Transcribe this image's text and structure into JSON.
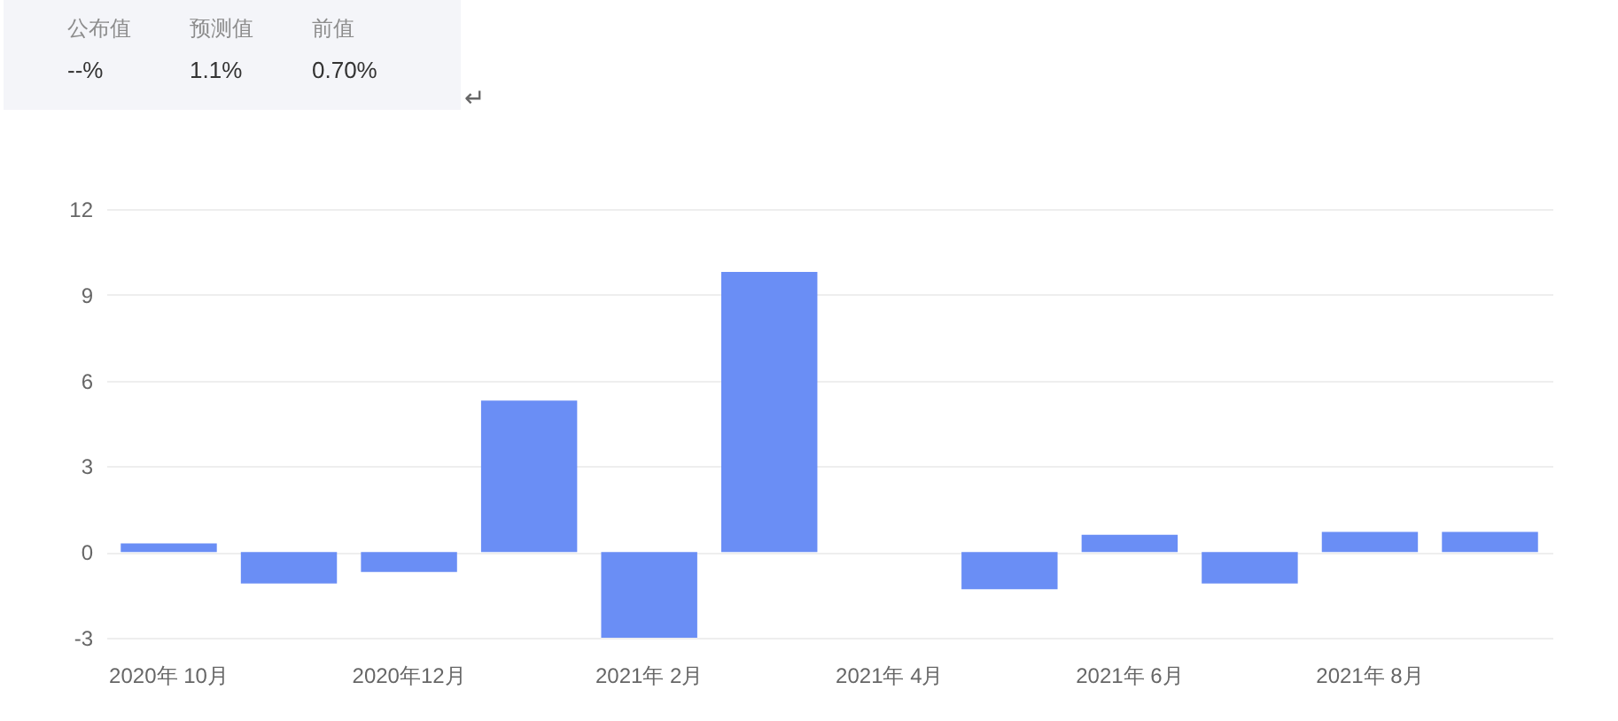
{
  "chart_data": [
    {
      "type": "other",
      "annotations": [
        "公布值",
        "预测值",
        "前值",
        "--%",
        "1.1%",
        "0.70%",
        "↵"
      ]
    },
    {
      "type": "bar",
      "categories": [
        "2020年 10月",
        null,
        "2020年12月",
        null,
        "2021年 2月",
        null,
        "2021年 4月",
        null,
        "2021年 6月",
        null,
        "2021年 8月",
        null
      ],
      "values": [
        0.3,
        -1.1,
        -0.7,
        5.3,
        -3.0,
        9.8,
        null,
        -1.3,
        0.6,
        -1.1,
        0.7,
        0.7
      ],
      "color": "#6a8ef5",
      "ylim": [
        -3,
        12
      ],
      "yticks": [
        -3,
        0,
        3,
        6,
        9,
        12
      ],
      "grid": "y"
    }
  ]
}
